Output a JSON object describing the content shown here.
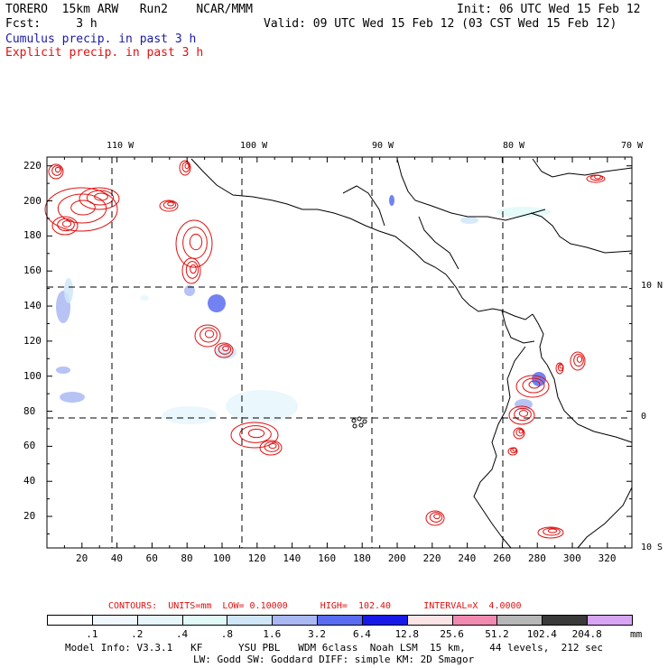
{
  "header": {
    "title": "TORERO  15km ARW   Run2    NCAR/MMM",
    "init": "Init: 06 UTC Wed 15 Feb 12",
    "fcst": "Fcst:     3 h",
    "valid": "Valid: 09 UTC Wed 15 Feb 12 (03 CST Wed 15 Feb 12)",
    "legend_cumulus": "Cumulus precip. in past 3 h",
    "legend_explicit": "Explicit precip. in past 3 h"
  },
  "map": {
    "top_lon_labels": [
      "110 W",
      "100 W",
      "90 W",
      "80 W",
      "70 W"
    ],
    "right_lat_labels": [
      "10 N",
      "0",
      "10 S"
    ],
    "y_ticks": [
      "220",
      "200",
      "180",
      "160",
      "140",
      "120",
      "100",
      "80",
      "60",
      "40",
      "20"
    ],
    "x_ticks": [
      "20",
      "40",
      "60",
      "80",
      "100",
      "120",
      "140",
      "160",
      "180",
      "200",
      "220",
      "240",
      "260",
      "280",
      "300",
      "320"
    ],
    "colors": {
      "explicit": "#e01010",
      "cumulus": "#3b5bdb",
      "coast": "#000000"
    }
  },
  "contours_line": "CONTOURS:  UNITS=mm  LOW= 0.10000      HIGH=  102.40      INTERVAL=X  4.0000",
  "colorbar": {
    "labels": [
      ".1",
      ".2",
      ".4",
      ".8",
      "1.6",
      "3.2",
      "6.4",
      "12.8",
      "25.6",
      "51.2",
      "102.4",
      "204.8"
    ],
    "unit": "mm",
    "colors": [
      "#ffffff",
      "#f0f8ff",
      "#e6f6fb",
      "#e0faf8",
      "#cfe6f8",
      "#a9b8f2",
      "#5a6cf0",
      "#1818e8",
      "#fce4e6",
      "#f08ab0",
      "#b7b7b7",
      "#3a3a3a",
      "#d8a4f4"
    ]
  },
  "footer": {
    "line1": "Model Info: V3.3.1   KF      YSU PBL   WDM 6class  Noah LSM  15 km,    44 levels,  212 sec",
    "line2": "LW: Godd SW: Goddard DIFF: simple KM: 2D Smagor"
  }
}
